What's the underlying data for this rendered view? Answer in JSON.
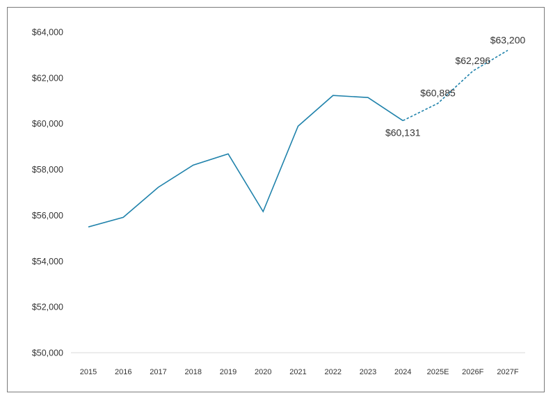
{
  "chart_data": {
    "type": "line",
    "title": "",
    "xlabel": "",
    "ylabel": "",
    "categories": [
      "2015",
      "2016",
      "2017",
      "2018",
      "2019",
      "2020",
      "2021",
      "2022",
      "2023",
      "2024",
      "2025E",
      "2026F",
      "2027F"
    ],
    "series": [
      {
        "style": "solid",
        "values": [
          55490,
          55910,
          57220,
          58190,
          58680,
          56160,
          59890,
          61230,
          61140,
          60131,
          null,
          null,
          null
        ]
      },
      {
        "style": "dashed",
        "values": [
          null,
          null,
          null,
          null,
          null,
          null,
          null,
          null,
          null,
          60131,
          60885,
          62296,
          63200
        ]
      }
    ],
    "data_labels": [
      {
        "category": "2024",
        "text": "$60,131",
        "position": "below"
      },
      {
        "category": "2025E",
        "text": "$60,885",
        "position": "above"
      },
      {
        "category": "2026F",
        "text": "$62,296",
        "position": "above"
      },
      {
        "category": "2027F",
        "text": "$63,200",
        "position": "above"
      }
    ],
    "ylim": [
      50000,
      64000
    ],
    "yticks": [
      50000,
      52000,
      54000,
      56000,
      58000,
      60000,
      62000,
      64000
    ],
    "ytick_labels": [
      "$50,000",
      "$52,000",
      "$54,000",
      "$56,000",
      "$58,000",
      "$60,000",
      "$62,000",
      "$64,000"
    ],
    "grid": false,
    "baseline": true,
    "colors": {
      "line": "#1f82ab",
      "baseline": "#d9d9d9",
      "frame": "#7a7a7a"
    }
  }
}
